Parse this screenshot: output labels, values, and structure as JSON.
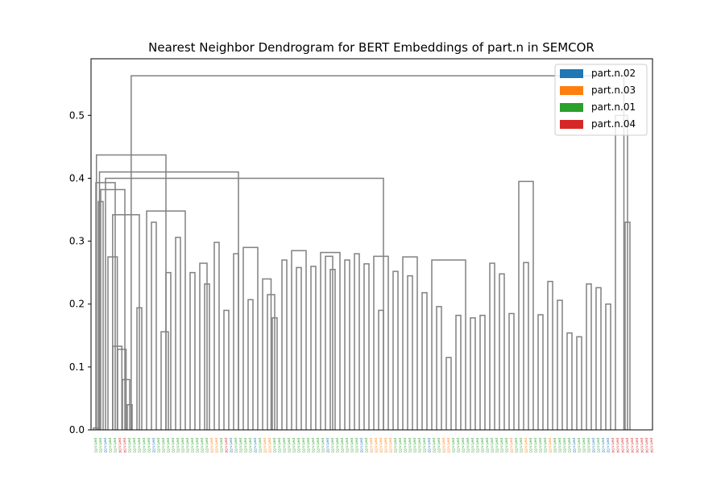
{
  "chart_data": {
    "type": "dendrogram",
    "title": "Nearest Neighbor Dendrogram for BERT Embeddings of part.n in SEMCOR",
    "xlabel": "",
    "ylabel": "",
    "ylim": [
      0,
      0.59
    ],
    "yticks": [
      "0.0",
      "0.1",
      "0.2",
      "0.3",
      "0.4",
      "0.5"
    ],
    "link_color": "#808080",
    "legend": [
      {
        "label": "part.n.02",
        "color": "#1f77b4"
      },
      {
        "label": "part.n.03",
        "color": "#ff7f0e"
      },
      {
        "label": "part.n.01",
        "color": "#2ca02c"
      },
      {
        "label": "part.n.04",
        "color": "#d62728"
      }
    ],
    "leaf_count": 116,
    "leaf_senses": [
      "part.n.01",
      "part.n.01",
      "part.n.02",
      "part.n.01",
      "part.n.01",
      "part.n.04",
      "part.n.04",
      "part.n.01",
      "part.n.01",
      "part.n.01",
      "part.n.01",
      "part.n.01",
      "part.n.02",
      "part.n.01",
      "part.n.01",
      "part.n.01",
      "part.n.01",
      "part.n.01",
      "part.n.01",
      "part.n.01",
      "part.n.01",
      "part.n.01",
      "part.n.01",
      "part.n.01",
      "part.n.03",
      "part.n.03",
      "part.n.01",
      "part.n.04",
      "part.n.02",
      "part.n.01",
      "part.n.01",
      "part.n.01",
      "part.n.01",
      "part.n.02",
      "part.n.01",
      "part.n.03",
      "part.n.03",
      "part.n.01",
      "part.n.01",
      "part.n.01",
      "part.n.01",
      "part.n.01",
      "part.n.01",
      "part.n.01",
      "part.n.01",
      "part.n.01",
      "part.n.01",
      "part.n.01",
      "part.n.02",
      "part.n.01",
      "part.n.01",
      "part.n.01",
      "part.n.01",
      "part.n.01",
      "part.n.01",
      "part.n.02",
      "part.n.01",
      "part.n.03",
      "part.n.03",
      "part.n.03",
      "part.n.03",
      "part.n.03",
      "part.n.01",
      "part.n.01",
      "part.n.01",
      "part.n.01",
      "part.n.01",
      "part.n.01",
      "part.n.01",
      "part.n.02",
      "part.n.01",
      "part.n.01",
      "part.n.03",
      "part.n.03",
      "part.n.01",
      "part.n.01",
      "part.n.01",
      "part.n.01",
      "part.n.01",
      "part.n.01",
      "part.n.01",
      "part.n.01",
      "part.n.01",
      "part.n.01",
      "part.n.01",
      "part.n.01",
      "part.n.03",
      "part.n.01",
      "part.n.01",
      "part.n.03",
      "part.n.01",
      "part.n.01",
      "part.n.01",
      "part.n.01",
      "part.n.03",
      "part.n.01",
      "part.n.01",
      "part.n.01",
      "part.n.01",
      "part.n.02",
      "part.n.01",
      "part.n.01",
      "part.n.01",
      "part.n.02",
      "part.n.01",
      "part.n.02",
      "part.n.02",
      "part.n.04",
      "part.n.04",
      "part.n.04",
      "part.n.04",
      "part.n.04",
      "part.n.04",
      "part.n.04",
      "part.n.04",
      "part.n.04"
    ],
    "merges": [
      {
        "x1": 0,
        "x2": 1,
        "h": 0.003
      },
      {
        "x1": 1.0,
        "x2": 2,
        "h": 0.363
      },
      {
        "x1": 7,
        "x2": 8,
        "h": 0.04
      },
      {
        "x1": 6,
        "x2": 7.5,
        "h": 0.08
      },
      {
        "x1": 5,
        "x2": 6.75,
        "h": 0.128
      },
      {
        "x1": 4,
        "x2": 5.88,
        "h": 0.133
      },
      {
        "x1": 3,
        "x2": 4.94,
        "h": 0.275
      },
      {
        "x1": 9,
        "x2": 10,
        "h": 0.194
      },
      {
        "x1": 3.97,
        "x2": 9.5,
        "h": 0.342
      },
      {
        "x1": 15,
        "x2": 16,
        "h": 0.25
      },
      {
        "x1": 14,
        "x2": 15.5,
        "h": 0.156
      },
      {
        "x1": 20,
        "x2": 21,
        "h": 0.25
      },
      {
        "x1": 23,
        "x2": 24,
        "h": 0.232
      },
      {
        "x1": 22,
        "x2": 23.5,
        "h": 0.265
      },
      {
        "x1": 27,
        "x2": 28,
        "h": 0.19
      },
      {
        "x1": 29,
        "x2": 30,
        "h": 0.28
      },
      {
        "x1": 32,
        "x2": 33,
        "h": 0.207
      },
      {
        "x1": 37,
        "x2": 38,
        "h": 0.178
      },
      {
        "x1": 36,
        "x2": 37.5,
        "h": 0.215
      },
      {
        "x1": 35,
        "x2": 36.75,
        "h": 0.24
      },
      {
        "x1": 39,
        "x2": 40,
        "h": 0.27
      },
      {
        "x1": 42,
        "x2": 43,
        "h": 0.258
      },
      {
        "x1": 45,
        "x2": 46,
        "h": 0.26
      },
      {
        "x1": 49,
        "x2": 50,
        "h": 0.255
      },
      {
        "x1": 48,
        "x2": 49.5,
        "h": 0.276
      },
      {
        "x1": 52,
        "x2": 53,
        "h": 0.27
      },
      {
        "x1": 56,
        "x2": 57,
        "h": 0.264
      },
      {
        "x1": 59,
        "x2": 60,
        "h": 0.19
      },
      {
        "x1": 62,
        "x2": 63,
        "h": 0.252
      },
      {
        "x1": 65,
        "x2": 66,
        "h": 0.245
      },
      {
        "x1": 68,
        "x2": 69,
        "h": 0.218
      },
      {
        "x1": 71,
        "x2": 72,
        "h": 0.196
      },
      {
        "x1": 73,
        "x2": 74,
        "h": 0.115
      },
      {
        "x1": 75,
        "x2": 76,
        "h": 0.182
      },
      {
        "x1": 78,
        "x2": 79,
        "h": 0.178
      },
      {
        "x1": 80,
        "x2": 81,
        "h": 0.182
      },
      {
        "x1": 84,
        "x2": 85,
        "h": 0.248
      },
      {
        "x1": 86,
        "x2": 87,
        "h": 0.185
      },
      {
        "x1": 89,
        "x2": 90,
        "h": 0.266
      },
      {
        "x1": 92,
        "x2": 93,
        "h": 0.183
      },
      {
        "x1": 94,
        "x2": 95,
        "h": 0.236
      },
      {
        "x1": 96,
        "x2": 97,
        "h": 0.206
      },
      {
        "x1": 98,
        "x2": 99,
        "h": 0.154
      },
      {
        "x1": 100,
        "x2": 101,
        "h": 0.148
      },
      {
        "x1": 102,
        "x2": 103,
        "h": 0.232
      },
      {
        "x1": 104,
        "x2": 105,
        "h": 0.226
      },
      {
        "x1": 106,
        "x2": 107,
        "h": 0.2
      },
      {
        "x1": 110,
        "x2": 111,
        "h": 0.33
      },
      {
        "x1": 108,
        "x2": 110.5,
        "h": 0.5
      },
      {
        "x1": 12,
        "x2": 13,
        "h": 0.33
      },
      {
        "x1": 17,
        "x2": 18,
        "h": 0.306
      },
      {
        "x1": 25,
        "x2": 26,
        "h": 0.298
      },
      {
        "x1": 31,
        "x2": 34,
        "h": 0.29
      },
      {
        "x1": 41,
        "x2": 44,
        "h": 0.285
      },
      {
        "x1": 47,
        "x2": 51,
        "h": 0.282
      },
      {
        "x1": 54,
        "x2": 55,
        "h": 0.28
      },
      {
        "x1": 58,
        "x2": 61,
        "h": 0.276
      },
      {
        "x1": 64,
        "x2": 67,
        "h": 0.275
      },
      {
        "x1": 70,
        "x2": 77,
        "h": 0.27
      },
      {
        "x1": 82,
        "x2": 83,
        "h": 0.265
      },
      {
        "x1": 88,
        "x2": 91,
        "h": 0.395
      },
      {
        "x1": 11,
        "x2": 19,
        "h": 0.348
      },
      {
        "x1": 1.5,
        "x2": 6.5,
        "h": 0.382
      },
      {
        "x1": 0.5,
        "x2": 4.5,
        "h": 0.393
      },
      {
        "x1": 2.5,
        "x2": 60,
        "h": 0.4
      },
      {
        "x1": 1.25,
        "x2": 30,
        "h": 0.41
      },
      {
        "x1": 0.62,
        "x2": 15,
        "h": 0.437
      },
      {
        "x1": 7.81,
        "x2": 109.75,
        "h": 0.563
      }
    ]
  }
}
